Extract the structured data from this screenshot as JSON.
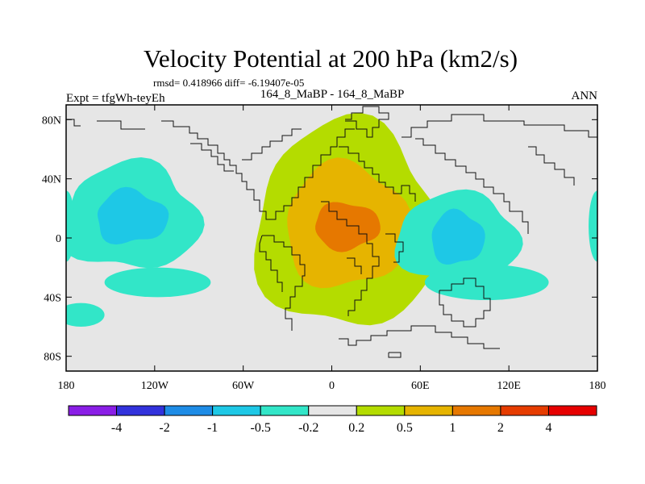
{
  "chart_data": {
    "type": "contour_map",
    "title": "Velocity Potential at 200 hPa (km2/s)",
    "stats": "rmsd= 0.418966 diff= -6.19407e-05",
    "left_label": "Expt = tfgWh-teyEh",
    "center_label": "164_8_MaBP - 164_8_MaBP",
    "right_label": "ANN",
    "x_ticks": [
      {
        "lon": -180,
        "label": "180"
      },
      {
        "lon": -120,
        "label": "120W"
      },
      {
        "lon": -60,
        "label": "60W"
      },
      {
        "lon": 0,
        "label": "0"
      },
      {
        "lon": 60,
        "label": "60E"
      },
      {
        "lon": 120,
        "label": "120E"
      },
      {
        "lon": 180,
        "label": "180"
      }
    ],
    "y_ticks": [
      {
        "lat": 80,
        "label": "80N"
      },
      {
        "lat": 40,
        "label": "40N"
      },
      {
        "lat": 0,
        "label": "0"
      },
      {
        "lat": -40,
        "label": "40S"
      },
      {
        "lat": -80,
        "label": "80S"
      }
    ],
    "lon_range": [
      -180,
      180
    ],
    "lat_range": [
      -90,
      90
    ],
    "colorbar": {
      "colors": [
        "#8a1ee6",
        "#3232dc",
        "#1e8ce6",
        "#1ec8e6",
        "#32e6c8",
        "#e6e6e6",
        "#b4dc00",
        "#e6b400",
        "#e67800",
        "#e63c00",
        "#e60000"
      ],
      "labels": [
        "-4",
        "-2",
        "-1",
        "-0.5",
        "-0.2",
        "0.2",
        "0.5",
        "1",
        "2",
        "4"
      ]
    },
    "field": {
      "background_color": "#e6e6e6",
      "positive_blob": {
        "center_lon": 10,
        "center_lat": 8,
        "contours": [
          {
            "level": "0.2-0.5",
            "color": "#b4dc00",
            "rx_deg": 62,
            "ry_deg": 70
          },
          {
            "level": "0.5-1",
            "color": "#e6b400",
            "rx_deg": 42,
            "ry_deg": 42
          },
          {
            "level": "1-2",
            "color": "#e67800",
            "rx_deg": 22,
            "ry_deg": 16
          }
        ]
      },
      "negative_west": {
        "center_lon": -136,
        "center_lat": 14,
        "contours": [
          {
            "level": "-0.5--0.2",
            "color": "#32e6c8",
            "rx_deg": 46,
            "ry_deg": 36
          },
          {
            "level": "-1--0.5",
            "color": "#1ec8e6",
            "rx_deg": 24,
            "ry_deg": 18
          }
        ]
      },
      "negative_east": {
        "center_lon": 85,
        "center_lat": 0,
        "contours": [
          {
            "level": "-0.5--0.2",
            "color": "#32e6c8",
            "rx_deg": 42,
            "ry_deg": 30
          },
          {
            "level": "-1--0.5",
            "color": "#1ec8e6",
            "rx_deg": 18,
            "ry_deg": 18
          }
        ]
      }
    }
  }
}
